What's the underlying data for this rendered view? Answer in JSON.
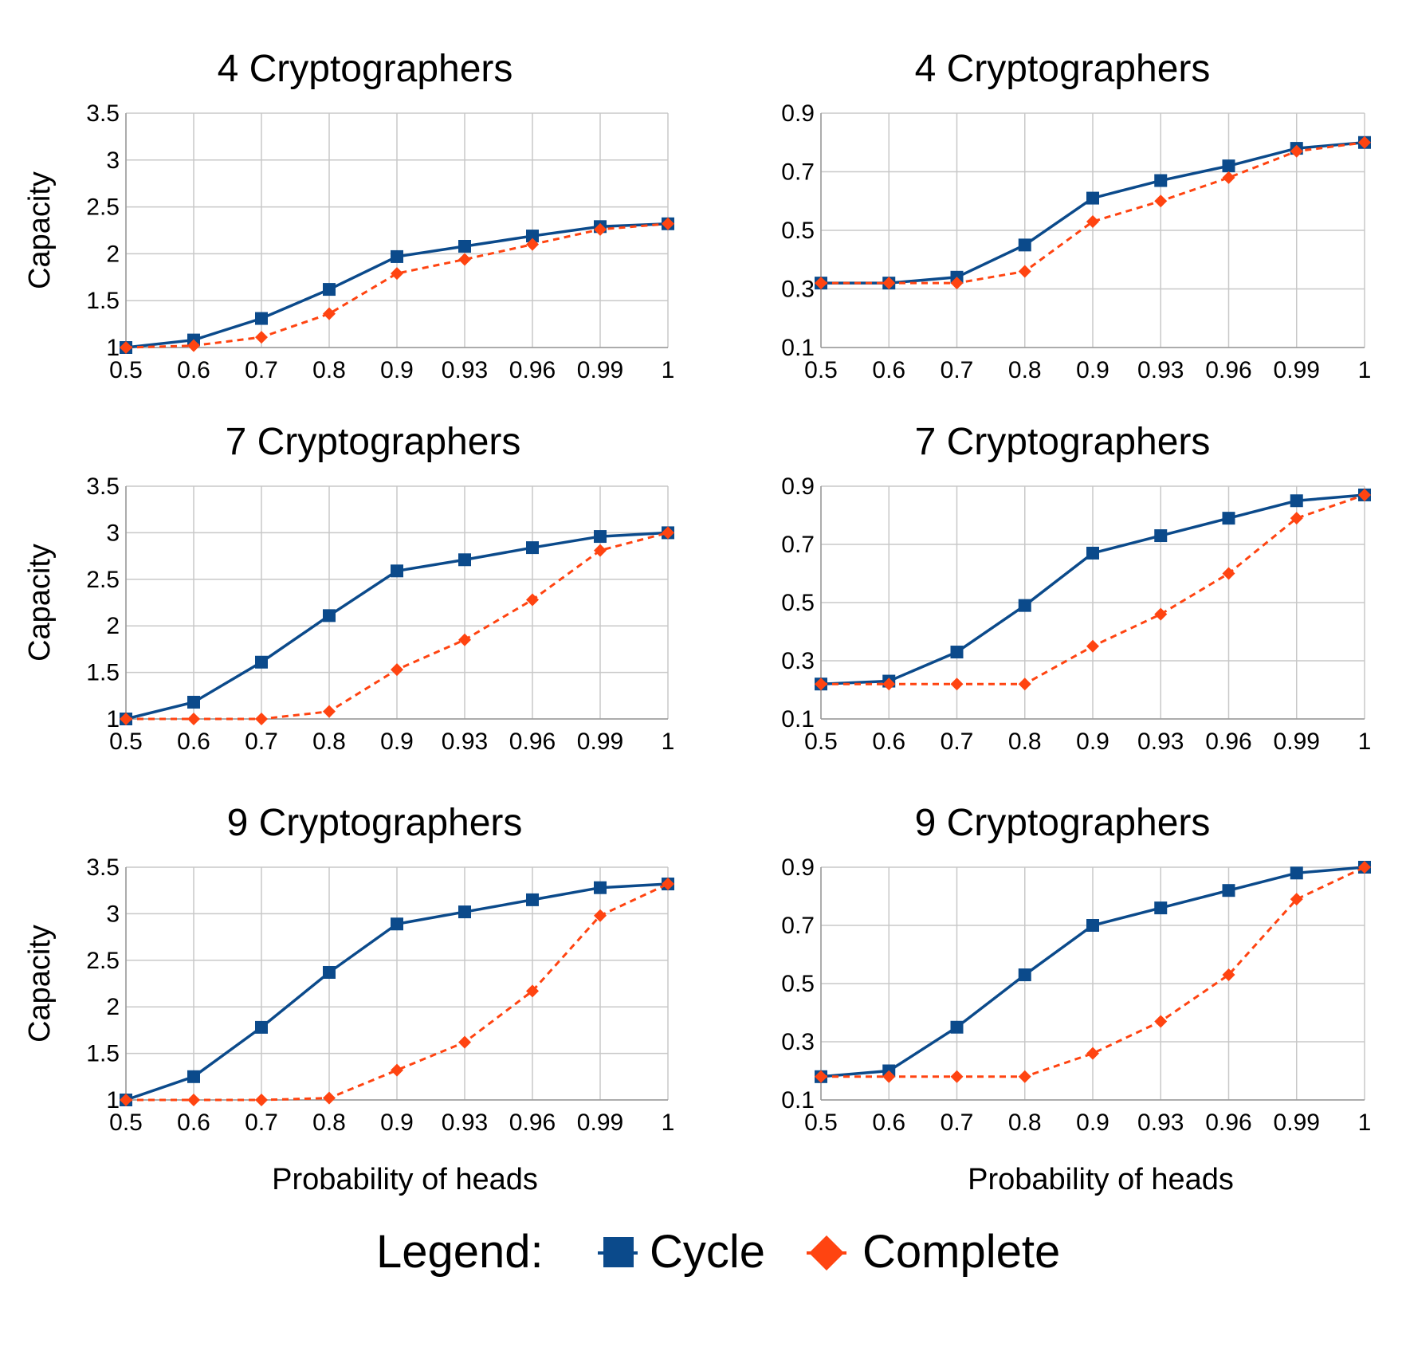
{
  "colors": {
    "cycle": "#0b4a8b",
    "complete": "#ff4411",
    "grid": "#c8c8c8"
  },
  "legend": {
    "title": "Legend:",
    "entries": [
      {
        "label": "Cycle",
        "marker": "square",
        "line": "solid"
      },
      {
        "label": "Complete",
        "marker": "diamond",
        "line": "dashed"
      }
    ]
  },
  "chart_data": [
    {
      "type": "line",
      "title": "4 Cryptographers",
      "ylabel": "Capacity",
      "xlabel": "",
      "categories": [
        "0.5",
        "0.6",
        "0.7",
        "0.8",
        "0.9",
        "0.93",
        "0.96",
        "0.99",
        "1"
      ],
      "ylim": [
        1,
        3.5
      ],
      "yticks": [
        "1",
        "1.5",
        "2",
        "2.5",
        "3",
        "3.5"
      ],
      "grid": true,
      "series": [
        {
          "name": "Cycle",
          "values": [
            1.0,
            1.08,
            1.31,
            1.62,
            1.97,
            2.08,
            2.19,
            2.29,
            2.32
          ]
        },
        {
          "name": "Complete",
          "values": [
            1.0,
            1.02,
            1.11,
            1.36,
            1.79,
            1.94,
            2.1,
            2.26,
            2.32
          ]
        }
      ]
    },
    {
      "type": "line",
      "title": "4 Cryptographers",
      "ylabel": "",
      "xlabel": "",
      "categories": [
        "0.5",
        "0.6",
        "0.7",
        "0.8",
        "0.9",
        "0.93",
        "0.96",
        "0.99",
        "1"
      ],
      "ylim": [
        0.1,
        0.9
      ],
      "yticks": [
        "0.1",
        "0.3",
        "0.5",
        "0.7",
        "0.9"
      ],
      "grid": true,
      "series": [
        {
          "name": "Cycle",
          "values": [
            0.32,
            0.32,
            0.34,
            0.45,
            0.61,
            0.67,
            0.72,
            0.78,
            0.8
          ]
        },
        {
          "name": "Complete",
          "values": [
            0.32,
            0.32,
            0.32,
            0.36,
            0.53,
            0.6,
            0.68,
            0.77,
            0.8
          ]
        }
      ]
    },
    {
      "type": "line",
      "title": "7 Cryptographers",
      "ylabel": "Capacity",
      "xlabel": "",
      "categories": [
        "0.5",
        "0.6",
        "0.7",
        "0.8",
        "0.9",
        "0.93",
        "0.96",
        "0.99",
        "1"
      ],
      "ylim": [
        1,
        3.5
      ],
      "yticks": [
        "1",
        "1.5",
        "2",
        "2.5",
        "3",
        "3.5"
      ],
      "grid": true,
      "series": [
        {
          "name": "Cycle",
          "values": [
            1.0,
            1.18,
            1.61,
            2.11,
            2.59,
            2.71,
            2.84,
            2.96,
            3.0
          ]
        },
        {
          "name": "Complete",
          "values": [
            1.0,
            1.0,
            1.0,
            1.08,
            1.53,
            1.85,
            2.28,
            2.81,
            3.0
          ]
        }
      ]
    },
    {
      "type": "line",
      "title": "7 Cryptographers",
      "ylabel": "",
      "xlabel": "",
      "categories": [
        "0.5",
        "0.6",
        "0.7",
        "0.8",
        "0.9",
        "0.93",
        "0.96",
        "0.99",
        "1"
      ],
      "ylim": [
        0.1,
        0.9
      ],
      "yticks": [
        "0.1",
        "0.3",
        "0.5",
        "0.7",
        "0.9"
      ],
      "grid": true,
      "series": [
        {
          "name": "Cycle",
          "values": [
            0.22,
            0.23,
            0.33,
            0.49,
            0.67,
            0.73,
            0.79,
            0.85,
            0.87
          ]
        },
        {
          "name": "Complete",
          "values": [
            0.22,
            0.22,
            0.22,
            0.22,
            0.35,
            0.46,
            0.6,
            0.79,
            0.87
          ]
        }
      ]
    },
    {
      "type": "line",
      "title": "9 Cryptographers",
      "ylabel": "Capacity",
      "xlabel": "Probability of heads",
      "categories": [
        "0.5",
        "0.6",
        "0.7",
        "0.8",
        "0.9",
        "0.93",
        "0.96",
        "0.99",
        "1"
      ],
      "ylim": [
        1,
        3.5
      ],
      "yticks": [
        "1",
        "1.5",
        "2",
        "2.5",
        "3",
        "3.5"
      ],
      "grid": true,
      "series": [
        {
          "name": "Cycle",
          "values": [
            1.0,
            1.25,
            1.78,
            2.37,
            2.89,
            3.02,
            3.15,
            3.28,
            3.32
          ]
        },
        {
          "name": "Complete",
          "values": [
            1.0,
            1.0,
            1.0,
            1.02,
            1.32,
            1.62,
            2.17,
            2.98,
            3.32
          ]
        }
      ]
    },
    {
      "type": "line",
      "title": "9 Cryptographers",
      "ylabel": "",
      "xlabel": "Probability of heads",
      "categories": [
        "0.5",
        "0.6",
        "0.7",
        "0.8",
        "0.9",
        "0.93",
        "0.96",
        "0.99",
        "1"
      ],
      "ylim": [
        0.1,
        0.9
      ],
      "yticks": [
        "0.1",
        "0.3",
        "0.5",
        "0.7",
        "0.9"
      ],
      "grid": true,
      "series": [
        {
          "name": "Cycle",
          "values": [
            0.18,
            0.2,
            0.35,
            0.53,
            0.7,
            0.76,
            0.82,
            0.88,
            0.9
          ]
        },
        {
          "name": "Complete",
          "values": [
            0.18,
            0.18,
            0.18,
            0.18,
            0.26,
            0.37,
            0.53,
            0.79,
            0.9
          ]
        }
      ]
    }
  ]
}
